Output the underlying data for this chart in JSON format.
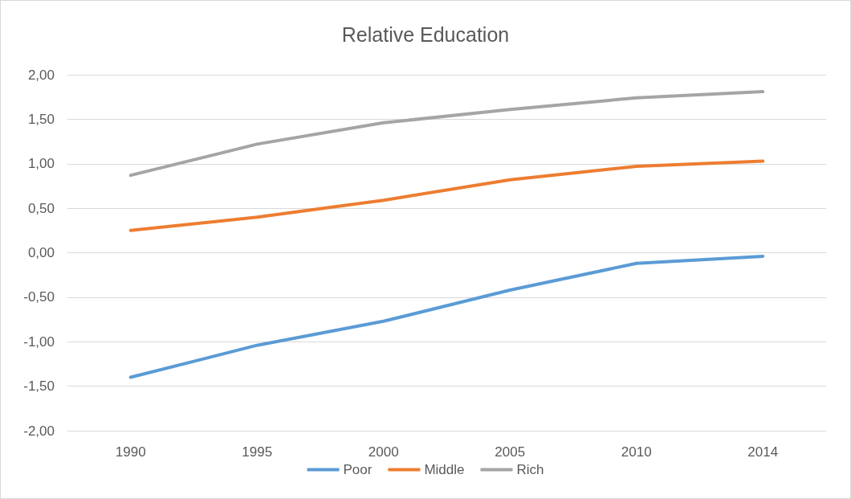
{
  "chart_data": {
    "type": "line",
    "title": "Relative Education",
    "categories": [
      "1990",
      "1995",
      "2000",
      "2005",
      "2010",
      "2014"
    ],
    "series": [
      {
        "name": "Poor",
        "color": "#5b9bd5",
        "values": [
          -1.4,
          -1.04,
          -0.77,
          -0.42,
          -0.12,
          -0.04
        ]
      },
      {
        "name": "Middle",
        "color": "#ed7d31",
        "values": [
          0.25,
          0.4,
          0.59,
          0.82,
          0.97,
          1.03
        ]
      },
      {
        "name": "Rich",
        "color": "#a5a5a5",
        "values": [
          0.87,
          1.22,
          1.46,
          1.61,
          1.74,
          1.81
        ]
      }
    ],
    "ylim": [
      -2,
      2
    ],
    "yticks": [
      {
        "value": -2,
        "label": "-2,00"
      },
      {
        "value": -1.5,
        "label": "-1,50"
      },
      {
        "value": -1,
        "label": "-1,00"
      },
      {
        "value": -0.5,
        "label": "-0,50"
      },
      {
        "value": 0,
        "label": "0,00"
      },
      {
        "value": 0.5,
        "label": "0,50"
      },
      {
        "value": 1,
        "label": "1,00"
      },
      {
        "value": 1.5,
        "label": "1,50"
      },
      {
        "value": 2,
        "label": "2,00"
      }
    ],
    "grid": "y",
    "legend": "bottom",
    "marker": "none"
  }
}
